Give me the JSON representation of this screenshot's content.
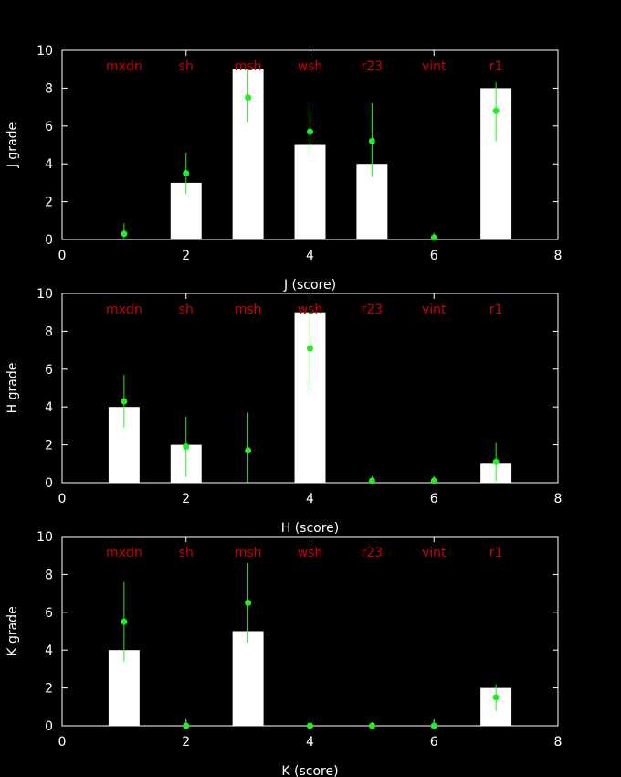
{
  "chart_data": [
    {
      "type": "bar",
      "ylabel": "J grade",
      "xlabel": "J (score)",
      "xlim": [
        0,
        8
      ],
      "ylim": [
        0,
        10
      ],
      "xticks": [
        "0",
        "2",
        "4",
        "6",
        "8"
      ],
      "yticks": [
        "0",
        "2",
        "4",
        "6",
        "8",
        "10"
      ],
      "category_labels": [
        "mxdn",
        "sh",
        "msh",
        "wsh",
        "r23",
        "vint",
        "r1"
      ],
      "bars": {
        "x": [
          1,
          2,
          3,
          4,
          5,
          6,
          7
        ],
        "values": [
          0,
          3,
          9,
          5,
          4,
          0,
          8
        ]
      },
      "points": {
        "x": [
          1,
          2,
          3,
          4,
          5,
          6,
          7
        ],
        "y": [
          0.3,
          3.5,
          7.5,
          5.7,
          5.2,
          0.1,
          6.8
        ],
        "err_low": [
          0.0,
          2.4,
          6.2,
          4.5,
          3.3,
          0.0,
          5.2
        ],
        "err_high": [
          0.85,
          4.6,
          9.0,
          7.0,
          7.2,
          0.35,
          8.3
        ]
      }
    },
    {
      "type": "bar",
      "ylabel": "H grade",
      "xlabel": "H (score)",
      "xlim": [
        0,
        8
      ],
      "ylim": [
        0,
        10
      ],
      "xticks": [
        "0",
        "2",
        "4",
        "6",
        "8"
      ],
      "yticks": [
        "0",
        "2",
        "4",
        "6",
        "8",
        "10"
      ],
      "category_labels": [
        "mxdn",
        "sh",
        "msh",
        "wsh",
        "r23",
        "vint",
        "r1"
      ],
      "bars": {
        "x": [
          1,
          2,
          3,
          4,
          5,
          6,
          7
        ],
        "values": [
          4,
          2,
          0,
          9,
          0,
          0,
          1
        ]
      },
      "points": {
        "x": [
          1,
          2,
          3,
          4,
          5,
          6,
          7
        ],
        "y": [
          4.3,
          1.9,
          1.7,
          7.1,
          0.1,
          0.1,
          1.1
        ],
        "err_low": [
          2.9,
          0.3,
          0.0,
          4.9,
          0.0,
          0.0,
          0.1
        ],
        "err_high": [
          5.7,
          3.5,
          3.7,
          9.3,
          0.35,
          0.35,
          2.1
        ]
      }
    },
    {
      "type": "bar",
      "ylabel": "K grade",
      "xlabel": "K (score)",
      "xlim": [
        0,
        8
      ],
      "ylim": [
        0,
        10
      ],
      "xticks": [
        "0",
        "2",
        "4",
        "6",
        "8"
      ],
      "yticks": [
        "0",
        "2",
        "4",
        "6",
        "8",
        "10"
      ],
      "category_labels": [
        "mxdn",
        "sh",
        "msh",
        "wsh",
        "r23",
        "vint",
        "r1"
      ],
      "bars": {
        "x": [
          1,
          2,
          3,
          4,
          5,
          6,
          7
        ],
        "values": [
          4,
          0,
          5,
          0,
          0,
          0,
          2
        ]
      },
      "points": {
        "x": [
          1,
          2,
          3,
          4,
          5,
          6,
          7
        ],
        "y": [
          5.5,
          0.0,
          6.5,
          0.0,
          0.0,
          0.0,
          1.5
        ],
        "err_low": [
          3.4,
          0.0,
          4.4,
          0.0,
          0.0,
          0.0,
          0.8
        ],
        "err_high": [
          7.6,
          0.35,
          8.6,
          0.35,
          0.2,
          0.35,
          2.2
        ]
      }
    }
  ],
  "colors": {
    "background": "#000000",
    "axes": "#ffffff",
    "bar": "#ffffff",
    "points": "#22ee22",
    "category_labels": "#cc0000",
    "text": "#ffffff"
  }
}
